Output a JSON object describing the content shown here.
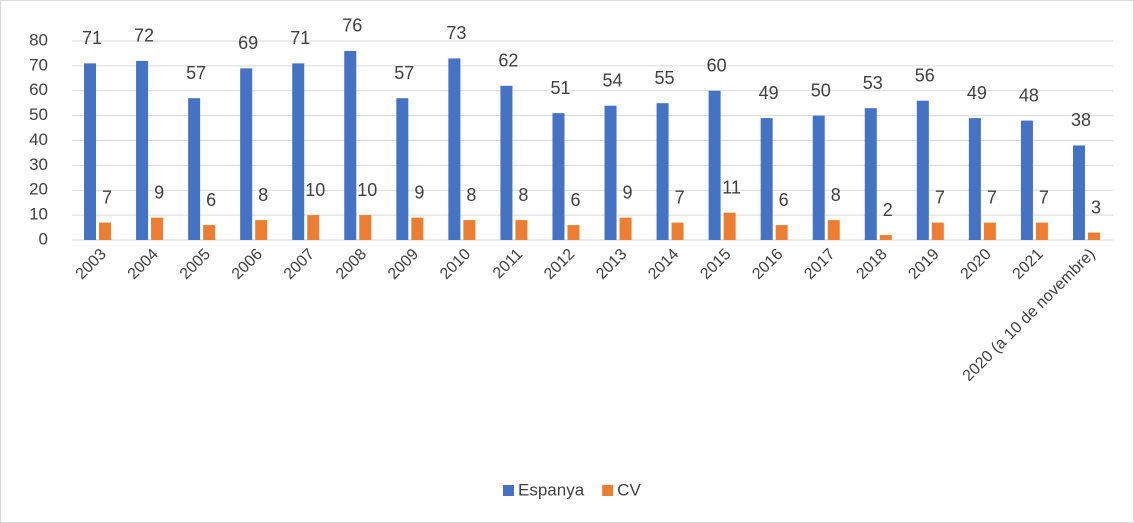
{
  "chart_data": {
    "type": "bar",
    "categories": [
      "2003",
      "2004",
      "2005",
      "2006",
      "2007",
      "2008",
      "2009",
      "2010",
      "2011",
      "2012",
      "2013",
      "2014",
      "2015",
      "2016",
      "2017",
      "2018",
      "2019",
      "2020",
      "2021",
      "2020 (a 10 de novembre)"
    ],
    "series": [
      {
        "name": "Espanya",
        "color": "#4472c4",
        "values": [
          71,
          72,
          57,
          69,
          71,
          76,
          57,
          73,
          62,
          51,
          54,
          55,
          60,
          49,
          50,
          53,
          56,
          49,
          48,
          38
        ]
      },
      {
        "name": "CV",
        "color": "#ed7d31",
        "values": [
          7,
          9,
          6,
          8,
          10,
          10,
          9,
          8,
          8,
          6,
          9,
          7,
          11,
          6,
          8,
          2,
          7,
          7,
          7,
          3
        ]
      }
    ],
    "ylim": [
      0,
      80
    ],
    "yticks": [
      0,
      10,
      20,
      30,
      40,
      50,
      60,
      70,
      80
    ],
    "grid": true,
    "legend": "bottom"
  }
}
